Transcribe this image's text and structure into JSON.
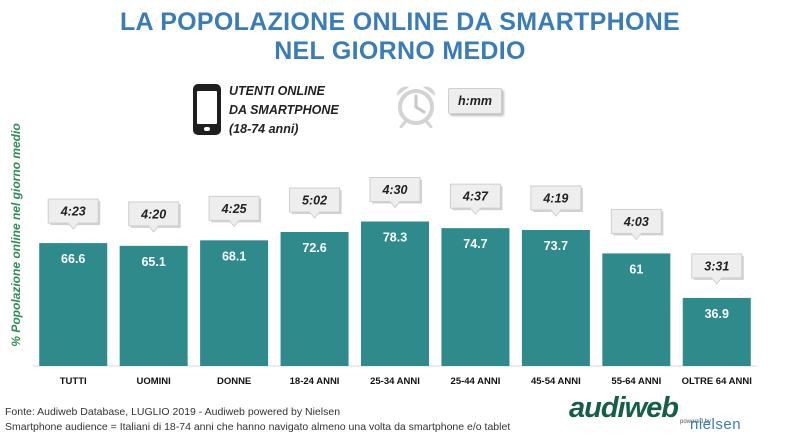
{
  "header": {
    "title_line1": "LA POPOLAZIONE ONLINE DA SMARTPHONE",
    "title_line2": "NEL GIORNO MEDIO"
  },
  "legend": {
    "phone_label_line1": "UTENTI ONLINE",
    "phone_label_line2": "DA SMARTPHONE",
    "phone_label_line3": "(18-74 anni)",
    "phone_icon": "smartphone-icon",
    "clock_icon": "alarm-clock-icon",
    "time_format": "h:mm"
  },
  "colors": {
    "title": "#3a7cb8",
    "bar": "#2f8a8c",
    "ylabel": "#2e8b57",
    "callout_bg": "#eeeeee"
  },
  "chart_data": {
    "type": "bar",
    "categories": [
      "TUTTI",
      "UOMINI",
      "DONNE",
      "18-24 ANNI",
      "25-34 ANNI",
      "25-44 ANNI",
      "45-54 ANNI",
      "55-64 ANNI",
      "OLTRE 64 ANNI"
    ],
    "values": [
      66.6,
      65.1,
      68.1,
      72.6,
      78.3,
      74.7,
      73.7,
      61,
      36.9
    ],
    "value_labels": [
      "66.6",
      "65.1",
      "68.1",
      "72.6",
      "78.3",
      "74.7",
      "73.7",
      "61",
      "36.9"
    ],
    "time_labels": [
      "4:23",
      "4:20",
      "4:25",
      "5:02",
      "4:30",
      "4:37",
      "4:19",
      "4:03",
      "3:31"
    ],
    "ylabel": "% Popolazione online nel giorno medio",
    "ylim": [
      0,
      100
    ],
    "grid": false
  },
  "footer": {
    "source": "Fonte: Audiweb Database, LUGLIO 2019 - Audiweb powered by Nielsen",
    "note": "Smartphone audience = Italiani di 18-74 anni che hanno navigato almeno una volta da smartphone e/o tablet"
  },
  "logo": {
    "brand": "audiweb",
    "powered_by": "powered by",
    "partner": "nielsen"
  }
}
